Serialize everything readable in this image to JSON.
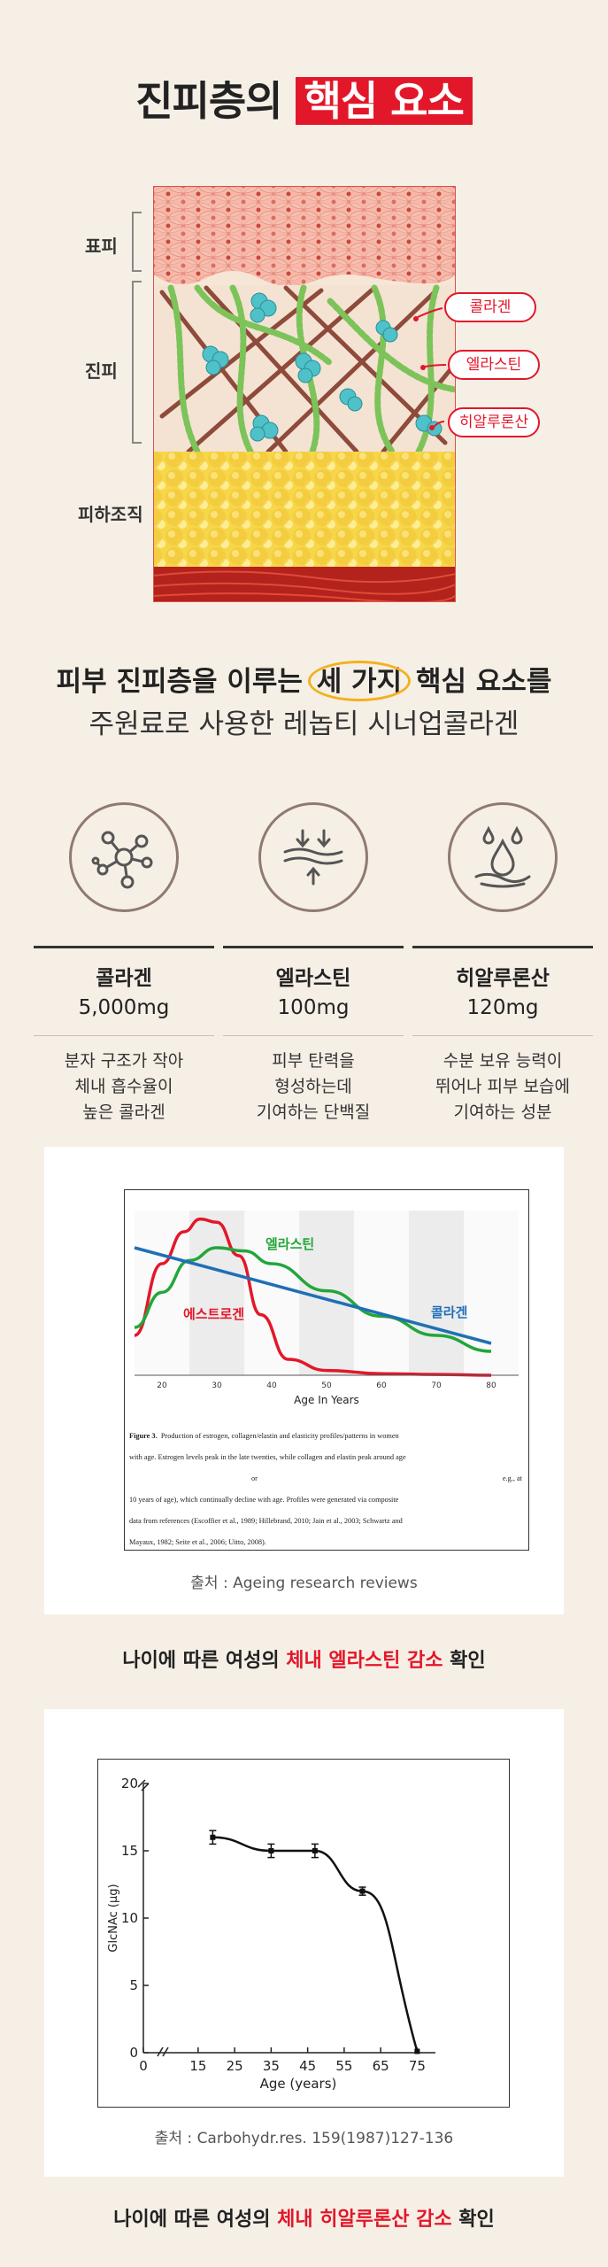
{
  "title": {
    "prefix": "진피층의",
    "highlight": "핵심 요소"
  },
  "skin_diagram": {
    "layers": [
      "표피",
      "진피",
      "피하조직"
    ],
    "callouts": [
      "콜라겐",
      "엘라스틴",
      "히알루론산"
    ]
  },
  "intro": {
    "line1_a": "피부 진피층을 이루는",
    "line1_circled": "세 가지",
    "line1_b": "핵심 요소를",
    "line2": "주원료로 사용한 레놉티 시너업콜라겐"
  },
  "ingredients": [
    {
      "icon": "molecule-icon",
      "name": "콜라겐",
      "amount": "5,000mg",
      "desc": [
        "분자 구조가 작아",
        "체내 흡수율이",
        "높은 콜라겐"
      ]
    },
    {
      "icon": "elasticity-arrows-icon",
      "name": "엘라스틴",
      "amount": "100mg",
      "desc": [
        "피부 탄력을",
        "형성하는데",
        "기여하는 단백질"
      ]
    },
    {
      "icon": "water-drop-icon",
      "name": "히알루론산",
      "amount": "120mg",
      "desc": [
        "수분 보유 능력이",
        "뛰어나 피부 보습에",
        "기여하는 성분"
      ]
    }
  ],
  "chart1": {
    "source": "출처 : Ageing research reviews",
    "caption_prefix": "나이에 따른 여성의",
    "caption_highlight": "체내 엘라스틴 감소",
    "caption_suffix": "확인",
    "figure_caption": {
      "label": "Figure 3.",
      "line1": "Production of estrogen, collagen/elastin and elasticity profiles/patterns in women",
      "line2": "with age.  Estrogen levels peak in the late twenties, while collagen and elastin peak around age",
      "line3a": "or",
      "line3b": "e.g., at",
      "line4": "10 years of age), which continually decline with age.   Profiles were generated via composite",
      "line5": "data from references (Escoffier et al., 1989; Hillebrand, 2010; Jain et al., 2003; Schwartz and",
      "line6": "Mayaux, 1982; Seite et al., 2006; Uitto, 2008)."
    }
  },
  "chart2": {
    "source": "출처 : Carbohydr.res. 159(1987)127-136",
    "caption_prefix": "나이에 따른 여성의",
    "caption_highlight": "체내 히알루론산 감소",
    "caption_suffix": "확인"
  },
  "chart_data": [
    {
      "type": "line",
      "title": "",
      "xlabel": "Age In Years",
      "ylabel": "",
      "xlim": [
        15,
        85
      ],
      "x_ticks": [
        "20",
        "30",
        "40",
        "50",
        "60",
        "70",
        "80"
      ],
      "series": [
        {
          "name": "에스트로겐",
          "color": "#e3172a",
          "x": [
            15,
            20,
            24,
            27,
            30,
            34,
            38,
            43,
            50,
            60,
            70,
            80
          ],
          "y": [
            0.25,
            0.7,
            0.9,
            0.98,
            0.96,
            0.75,
            0.38,
            0.1,
            0.03,
            0.01,
            0.005,
            0.0
          ]
        },
        {
          "name": "엘라스틴",
          "color": "#22a63a",
          "x": [
            15,
            20,
            25,
            30,
            35,
            40,
            50,
            60,
            70,
            80
          ],
          "y": [
            0.3,
            0.52,
            0.72,
            0.8,
            0.78,
            0.7,
            0.53,
            0.37,
            0.25,
            0.15
          ]
        },
        {
          "name": "콜라겐",
          "color": "#1f6fb5",
          "x": [
            15,
            80
          ],
          "y": [
            0.8,
            0.2
          ]
        }
      ]
    },
    {
      "type": "line",
      "title": "",
      "xlabel": "Age (years)",
      "ylabel": "GlcNAc (μg)",
      "xlim": [
        0,
        80
      ],
      "ylim": [
        0,
        20
      ],
      "x_ticks": [
        "0",
        "15",
        "25",
        "35",
        "45",
        "55",
        "65",
        "75"
      ],
      "y_ticks": [
        "0",
        "5",
        "10",
        "15",
        "20"
      ],
      "series": [
        {
          "name": "",
          "x": [
            19,
            35,
            47,
            60,
            75
          ],
          "y": [
            16,
            15,
            15,
            12,
            0.1
          ],
          "err": [
            0.5,
            0.5,
            0.5,
            0.3,
            0
          ]
        }
      ]
    }
  ]
}
